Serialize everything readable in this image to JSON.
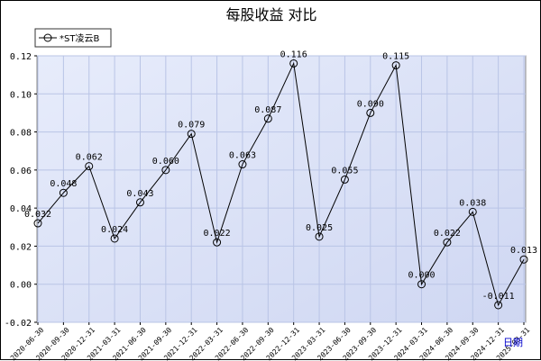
{
  "chart_data": {
    "type": "line",
    "title": "每股收益 对比",
    "xlabel": "日期",
    "ylabel": "",
    "ylim": [
      -0.02,
      0.12
    ],
    "yticks": [
      "-0.02",
      "0.00",
      "0.02",
      "0.04",
      "0.06",
      "0.08",
      "0.10",
      "0.12"
    ],
    "grid": true,
    "legend_position": "top-left",
    "categories": [
      "2020-06-30",
      "2020-09-30",
      "2020-12-31",
      "2021-03-31",
      "2021-06-30",
      "2021-09-30",
      "2021-12-31",
      "2022-03-31",
      "2022-06-30",
      "2022-09-30",
      "2022-12-31",
      "2023-03-31",
      "2023-06-30",
      "2023-09-30",
      "2023-12-31",
      "2024-03-31",
      "2024-06-30",
      "2024-09-30",
      "2024-12-31",
      "2025-03-31"
    ],
    "series": [
      {
        "name": "*ST凌云B",
        "values": [
          0.032,
          0.048,
          0.062,
          0.024,
          0.043,
          0.06,
          0.079,
          0.022,
          0.063,
          0.087,
          0.116,
          0.025,
          0.055,
          0.09,
          0.115,
          0.0,
          0.022,
          0.038,
          -0.011,
          0.013
        ],
        "labels": [
          "0.032",
          "0.048",
          "0.062",
          "0.024",
          "0.043",
          "0.060",
          "0.079",
          "0.022",
          "0.063",
          "0.087",
          "0.116",
          "0.025",
          "0.055",
          "0.090",
          "0.115",
          "0.000",
          "0.022",
          "0.038",
          "-0.011",
          "0.013"
        ]
      }
    ],
    "colors": {
      "plot_bg": "#dde3f7",
      "grid": "#b9c4e6",
      "line": "#000000",
      "xunit": "#0000cc"
    }
  }
}
